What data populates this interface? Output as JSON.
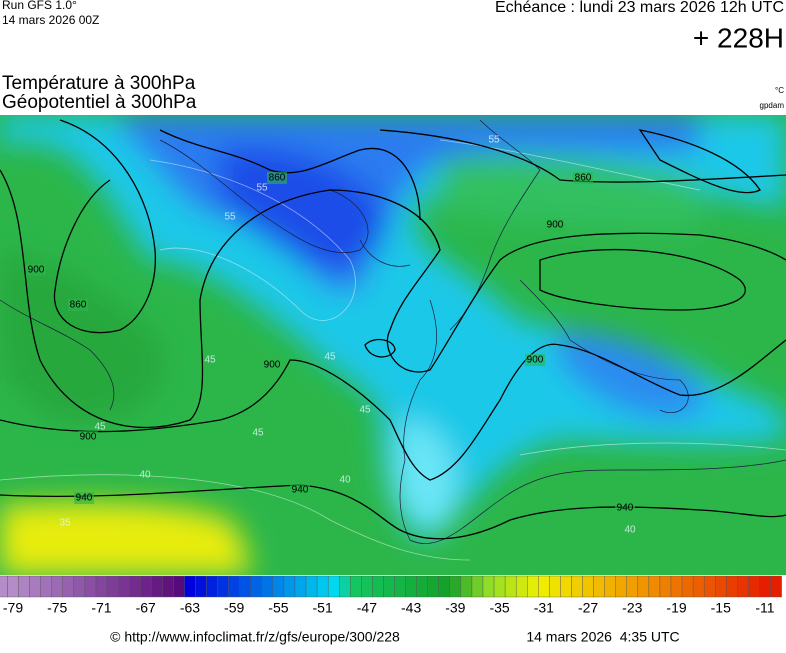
{
  "header": {
    "run": "Run GFS 1.0°",
    "run_date": "14 mars 2026 00Z",
    "valid": "Echéance : lundi 23 mars 2026 12h UTC",
    "lead": "+ 228H"
  },
  "titles": {
    "temperature": "Température à 300hPa",
    "geopotential": "Géopotentiel à 300hPa",
    "temp_unit": "°C",
    "geo_unit": "gpdam"
  },
  "map": {
    "geopotential_labels": [
      860,
      900,
      860,
      900,
      900,
      900,
      900,
      860,
      940,
      940,
      940
    ],
    "temperature_labels": [
      55,
      55,
      55,
      45,
      45,
      45,
      45,
      45,
      40,
      40,
      35,
      40
    ]
  },
  "colorbar": {
    "ticks": [
      -79,
      -75,
      -71,
      -67,
      -63,
      -59,
      -55,
      -51,
      -47,
      -43,
      -39,
      -35,
      -31,
      -27,
      -23,
      -19,
      -15,
      -11
    ]
  },
  "footer": {
    "source": "© http://www.infoclimat.fr/z/gfs/europe/300/228",
    "generated": "14 mars 2026  4:35 UTC"
  }
}
